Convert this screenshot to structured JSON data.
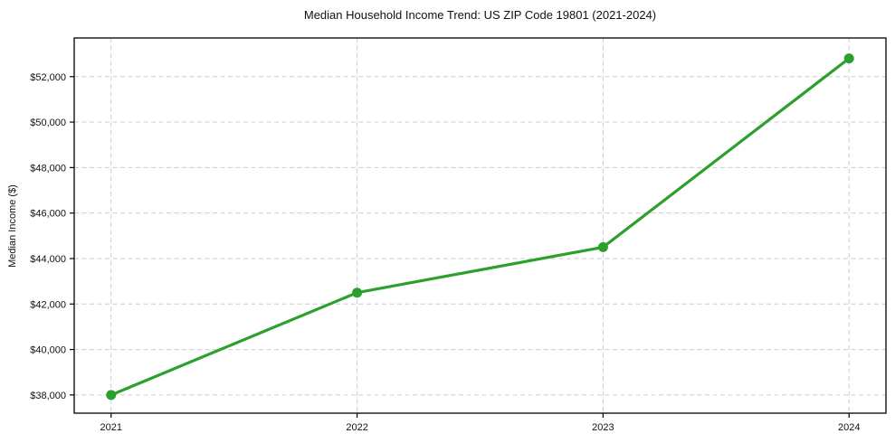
{
  "chart_data": {
    "type": "line",
    "title": "Median Household Income Trend: US ZIP Code 19801 (2021-2024)",
    "xlabel": "",
    "ylabel": "Median Income ($)",
    "categories": [
      "2021",
      "2022",
      "2023",
      "2024"
    ],
    "x": [
      2021,
      2022,
      2023,
      2024
    ],
    "values": [
      38000,
      42500,
      44500,
      52800
    ],
    "y_ticks": [
      38000,
      40000,
      42000,
      44000,
      46000,
      48000,
      50000,
      52000
    ],
    "y_tick_labels": [
      "$38,000",
      "$40,000",
      "$42,000",
      "$44,000",
      "$46,000",
      "$48,000",
      "$50,000",
      "$52,000"
    ],
    "xlim": [
      2020.85,
      2024.15
    ],
    "ylim": [
      37200,
      53700
    ],
    "grid": true,
    "legend": "none",
    "line_color": "#2ca02c",
    "marker": "circle",
    "grid_color": "#cccccc",
    "spine_color": "#000000",
    "text_color": "#111111"
  }
}
